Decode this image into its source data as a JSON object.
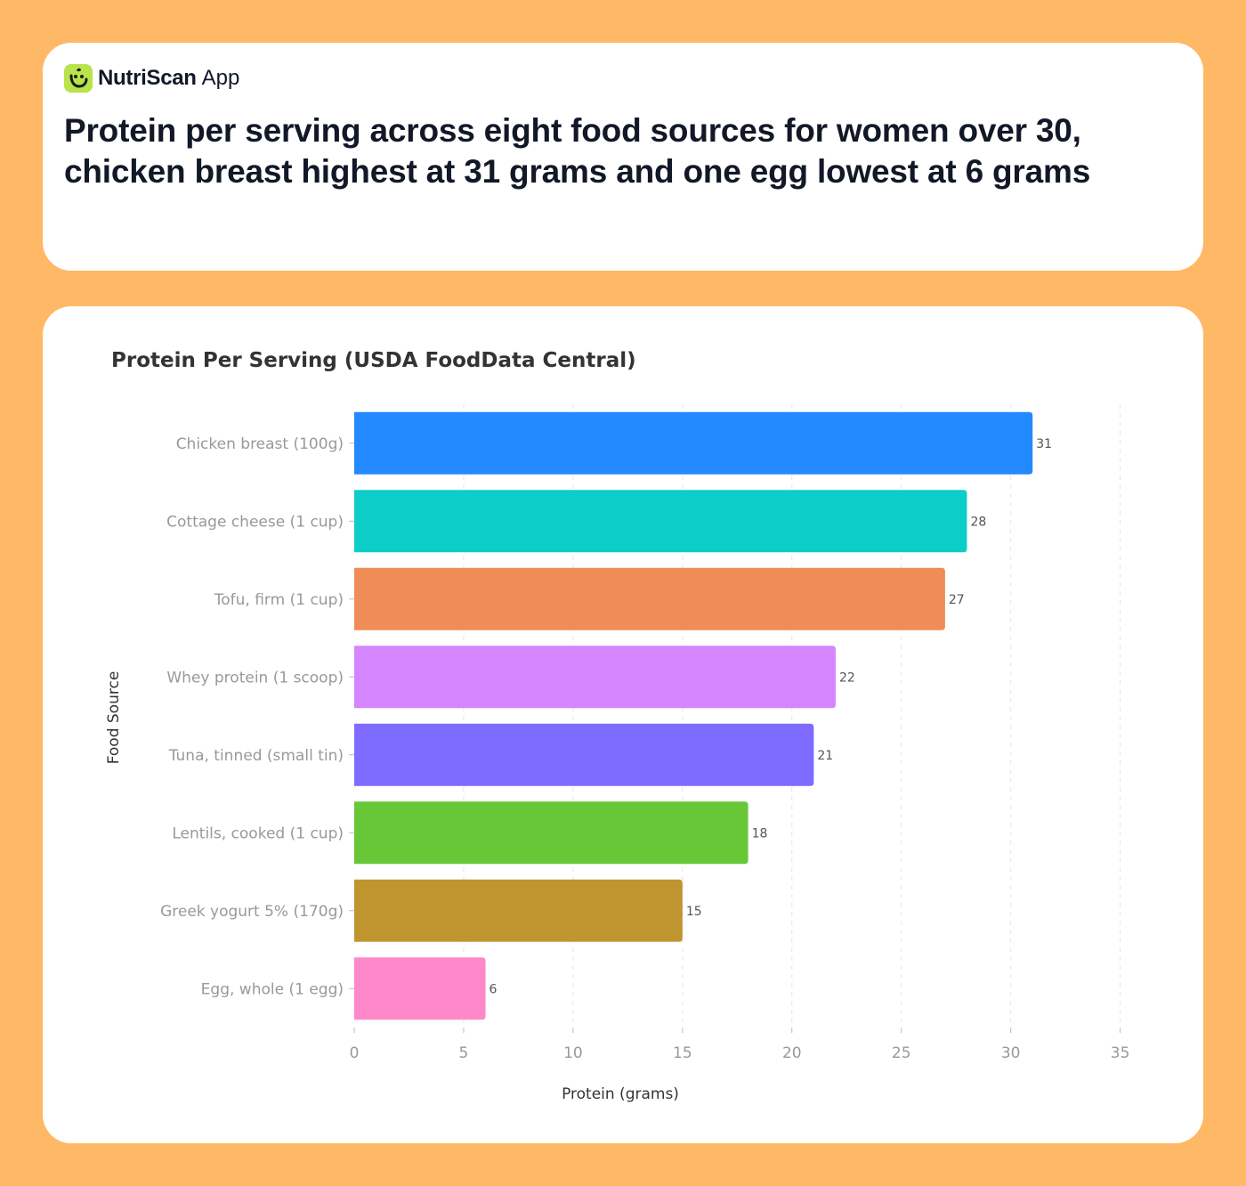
{
  "app": {
    "brand_name": "NutriScan",
    "brand_suffix": "App",
    "logo_icon": "smiling-leaf-logo",
    "accent_color": "#B8E34A"
  },
  "headline": "Protein per serving across eight food sources for women over 30, chicken breast highest at 31 grams and one egg lowest at 6 grams",
  "page_background": "#FFB865",
  "chart_data": {
    "type": "bar",
    "orientation": "horizontal",
    "title": "Protein Per Serving (USDA FoodData Central)",
    "xlabel": "Protein (grams)",
    "ylabel": "Food Source",
    "categories": [
      "Chicken breast (100g)",
      "Cottage cheese (1 cup)",
      "Tofu, firm (1 cup)",
      "Whey protein (1 scoop)",
      "Tuna, tinned (small tin)",
      "Lentils, cooked (1 cup)",
      "Greek yogurt 5% (170g)",
      "Egg, whole (1 egg)"
    ],
    "values": [
      31,
      28,
      27,
      22,
      21,
      18,
      15,
      6
    ],
    "colors": [
      "#2389FF",
      "#0DCDC9",
      "#F08C55",
      "#D585FF",
      "#7E6BFF",
      "#67C737",
      "#C09530",
      "#FF88CB"
    ],
    "xlim": [
      0,
      35
    ],
    "xticks": [
      0,
      5,
      10,
      15,
      20,
      25,
      30,
      35
    ],
    "grid": "vertical dashed",
    "data_labels": true
  }
}
